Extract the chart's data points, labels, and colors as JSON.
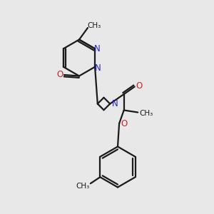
{
  "bg_color": "#e8e8e8",
  "bond_color": "#1a1a1a",
  "N_color": "#2222cc",
  "O_color": "#cc2222",
  "line_width": 1.6,
  "figsize": [
    3.0,
    3.0
  ],
  "dpi": 100,
  "xlim": [
    0,
    10
  ],
  "ylim": [
    0,
    10
  ]
}
